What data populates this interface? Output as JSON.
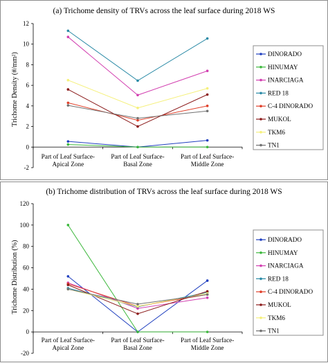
{
  "chart_data": [
    {
      "type": "line",
      "title": "(a) Trichome density  of TRVs across the leaf surface during 2018 WS",
      "ylabel": "Trichome Density (#/mm²)",
      "categories": [
        [
          "Part of Leaf Surface-",
          "Apical Zone"
        ],
        [
          "Part of Leaf Surface-",
          "Basal Zone"
        ],
        [
          "Part of Leaf Surface-",
          "Middle Zone"
        ]
      ],
      "ylim": [
        -2,
        12
      ],
      "yticks": [
        -2,
        0,
        2,
        4,
        6,
        8,
        10,
        12
      ],
      "legend_position": "right",
      "series": [
        {
          "name": "DINORADO",
          "color": "#1f3fbf",
          "values": [
            0.55,
            0.0,
            0.65
          ]
        },
        {
          "name": "HINUMAY",
          "color": "#3cb83c",
          "values": [
            0.25,
            0.0,
            0.0
          ]
        },
        {
          "name": "INARCIAGA",
          "color": "#d23fb0",
          "values": [
            10.7,
            5.05,
            7.4
          ]
        },
        {
          "name": "RED 18",
          "color": "#2a8aa6",
          "values": [
            11.3,
            6.45,
            10.55
          ]
        },
        {
          "name": "C-4 DINORADO",
          "color": "#e0402a",
          "values": [
            4.3,
            2.6,
            4.0
          ]
        },
        {
          "name": "MUKOL",
          "color": "#8b1a1a",
          "values": [
            5.6,
            2.0,
            5.1
          ]
        },
        {
          "name": "TKM6",
          "color": "#f5f07a",
          "values": [
            6.5,
            3.8,
            5.7
          ]
        },
        {
          "name": "TN1",
          "color": "#707070",
          "values": [
            4.05,
            2.8,
            3.5
          ]
        }
      ]
    },
    {
      "type": "line",
      "title": "(b) Trichome distribution  of TRVs across the leaf surface during 2018 WS",
      "ylabel": "Trichome Distribution (%)",
      "categories": [
        [
          "Part of Leaf Surface-",
          "Apical Zone"
        ],
        [
          "Part of Leaf Surface-",
          "Basal Zone"
        ],
        [
          "Part of Leaf Surface-",
          "Middle Zone"
        ]
      ],
      "ylim": [
        -20,
        120
      ],
      "yticks": [
        -20,
        0,
        20,
        40,
        60,
        80,
        100,
        120
      ],
      "legend_position": "right",
      "series": [
        {
          "name": "DINORADO",
          "color": "#1f3fbf",
          "values": [
            52,
            0,
            48
          ]
        },
        {
          "name": "HINUMAY",
          "color": "#3cb83c",
          "values": [
            100,
            0,
            0
          ]
        },
        {
          "name": "INARCIAGA",
          "color": "#d23fb0",
          "values": [
            46,
            22,
            32
          ]
        },
        {
          "name": "RED 18",
          "color": "#2a8aa6",
          "values": [
            41,
            23.5,
            37
          ]
        },
        {
          "name": "C-4 DINORADO",
          "color": "#e0402a",
          "values": [
            45,
            24,
            35
          ]
        },
        {
          "name": "MUKOL",
          "color": "#8b1a1a",
          "values": [
            44,
            17,
            38
          ]
        },
        {
          "name": "TKM6",
          "color": "#f5f07a",
          "values": [
            40,
            24,
            36
          ]
        },
        {
          "name": "TN1",
          "color": "#707070",
          "values": [
            40,
            26,
            35
          ]
        }
      ]
    }
  ]
}
